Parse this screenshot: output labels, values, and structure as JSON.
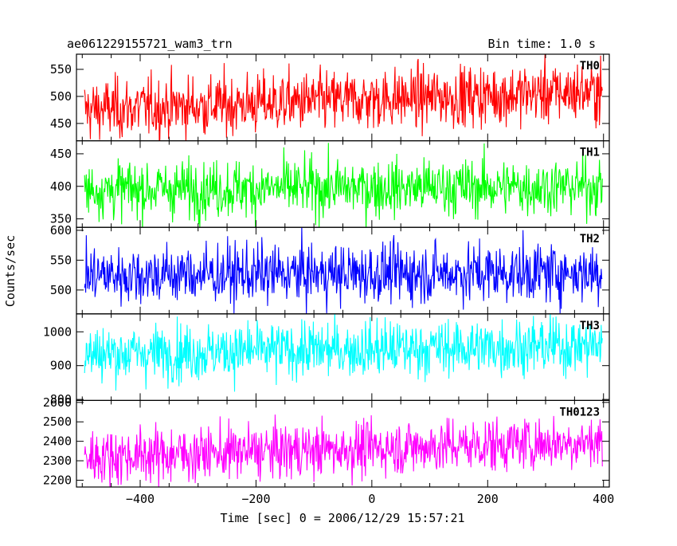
{
  "chart_data": [
    {
      "type": "line",
      "title": "ae061229155721_wam3_trn",
      "subtitle": "Bin time: 1.0 s",
      "xlabel": "Time [sec] 0 = 2006/12/29 15:57:21",
      "ylabel": "Counts/sec",
      "xlim": [
        -510,
        410
      ],
      "x_ticks": [
        "−400",
        "−200",
        "0",
        "200",
        "400"
      ],
      "x_tick_values": [
        -400,
        -200,
        0,
        200,
        400
      ],
      "panels": [
        {
          "name": "TH0",
          "color": "#ff0000",
          "ylim": [
            418,
            578
          ],
          "y_ticks": [
            "450",
            "500",
            "550"
          ],
          "y_tick_values": [
            450,
            500,
            550
          ],
          "series": {
            "x_start": -496,
            "x_end": 398,
            "mean_start": 475,
            "mean_end": 510,
            "spread": 28
          }
        },
        {
          "name": "TH1",
          "color": "#00ff00",
          "ylim": [
            337,
            470
          ],
          "y_ticks": [
            "350",
            "400",
            "450"
          ],
          "y_tick_values": [
            350,
            400,
            450
          ],
          "series": {
            "x_start": -496,
            "x_end": 398,
            "mean_start": 395,
            "mean_end": 400,
            "spread": 22
          }
        },
        {
          "name": "TH2",
          "color": "#0000ff",
          "ylim": [
            460,
            605
          ],
          "y_ticks": [
            "500",
            "550",
            "600"
          ],
          "y_tick_values": [
            500,
            550,
            600
          ],
          "series": {
            "x_start": -496,
            "x_end": 398,
            "mean_start": 525,
            "mean_end": 530,
            "spread": 25
          }
        },
        {
          "name": "TH3",
          "color": "#00ffff",
          "ylim": [
            797,
            1053
          ],
          "y_ticks": [
            "800",
            "900",
            "1000"
          ],
          "y_tick_values": [
            800,
            900,
            1000
          ],
          "series": {
            "x_start": -496,
            "x_end": 398,
            "mean_start": 935,
            "mean_end": 960,
            "spread": 42
          }
        },
        {
          "name": "TH0123",
          "color": "#ff00ff",
          "ylim": [
            2165,
            2610
          ],
          "y_ticks": [
            "2200",
            "2300",
            "2400",
            "2500",
            "2600"
          ],
          "y_tick_values": [
            2200,
            2300,
            2400,
            2500,
            2600
          ],
          "series": {
            "x_start": -496,
            "x_end": 398,
            "mean_start": 2320,
            "mean_end": 2400,
            "spread": 70
          }
        }
      ]
    }
  ]
}
